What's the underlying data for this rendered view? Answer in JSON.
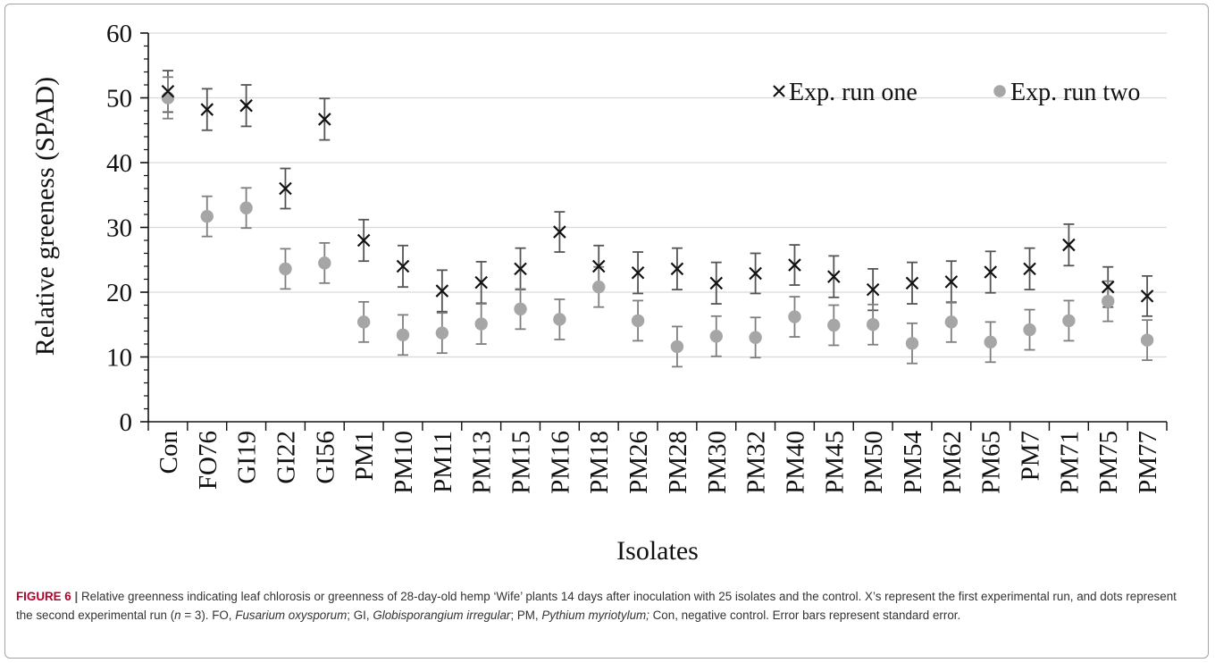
{
  "chart_data": {
    "type": "scatter",
    "title": "",
    "xlabel": "Isolates",
    "ylabel": "Relative greeness (SPAD)",
    "ylim": [
      0,
      60
    ],
    "yticks": [
      0,
      10,
      20,
      30,
      40,
      50,
      60
    ],
    "grid": true,
    "legend_position": "top-right",
    "categories": [
      "Con",
      "FO76",
      "GI19",
      "GI22",
      "GI56",
      "PM1",
      "PM10",
      "PM11",
      "PM13",
      "PM15",
      "PM16",
      "PM18",
      "PM26",
      "PM28",
      "PM30",
      "PM32",
      "PM40",
      "PM45",
      "PM50",
      "PM54",
      "PM62",
      "PM65",
      "PM7",
      "PM71",
      "PM75",
      "PM77"
    ],
    "series": [
      {
        "name": "Exp. run one",
        "marker": "x",
        "color": "#111111",
        "values": [
          51,
          48.2,
          48.8,
          36,
          46.7,
          28,
          24,
          20.2,
          21.5,
          23.6,
          29.3,
          24,
          23,
          23.6,
          21.4,
          22.9,
          24.2,
          22.4,
          20.4,
          21.4,
          21.6,
          23.1,
          23.6,
          27.3,
          20.8,
          19.4
        ],
        "errors": [
          3.2,
          3.2,
          3.2,
          3.1,
          3.2,
          3.2,
          3.2,
          3.2,
          3.2,
          3.2,
          3.1,
          3.2,
          3.2,
          3.2,
          3.2,
          3.1,
          3.1,
          3.2,
          3.2,
          3.2,
          3.2,
          3.2,
          3.2,
          3.2,
          3.1,
          3.1
        ]
      },
      {
        "name": "Exp. run two",
        "marker": "circle",
        "color": "#a6a6a6",
        "values": [
          50,
          31.7,
          33,
          23.6,
          24.5,
          15.4,
          13.4,
          13.7,
          15.1,
          17.4,
          15.8,
          20.8,
          15.6,
          11.6,
          13.2,
          13,
          16.2,
          14.9,
          15,
          12.1,
          15.4,
          12.3,
          14.2,
          15.6,
          18.6,
          12.6
        ],
        "errors": [
          3.2,
          3.1,
          3.1,
          3.1,
          3.1,
          3.1,
          3.1,
          3.1,
          3.1,
          3.1,
          3.1,
          3.1,
          3.1,
          3.1,
          3.1,
          3.1,
          3.1,
          3.1,
          3.1,
          3.1,
          3.1,
          3.1,
          3.1,
          3.1,
          3.1,
          3.1
        ]
      }
    ]
  },
  "caption": {
    "figure_label": "FIGURE 6",
    "separator": " | ",
    "segments": [
      {
        "text": "Relative greenness indicating leaf chlorosis or greenness of 28-day-old hemp ‘Wife’ plants 14 days after inoculation with 25 isolates and the control. X’s represent the first experimental run, and dots represent the second experimental run (",
        "italic": false
      },
      {
        "text": "n",
        "italic": true
      },
      {
        "text": " = 3). FO, ",
        "italic": false
      },
      {
        "text": "Fusarium oxysporum",
        "italic": true
      },
      {
        "text": "; GI, ",
        "italic": false
      },
      {
        "text": "Globisporangium irregular",
        "italic": true
      },
      {
        "text": "; PM, ",
        "italic": false
      },
      {
        "text": "Pythium myriotylum;",
        "italic": true
      },
      {
        "text": " Con, negative control. Error bars represent standard error.",
        "italic": false
      }
    ]
  }
}
